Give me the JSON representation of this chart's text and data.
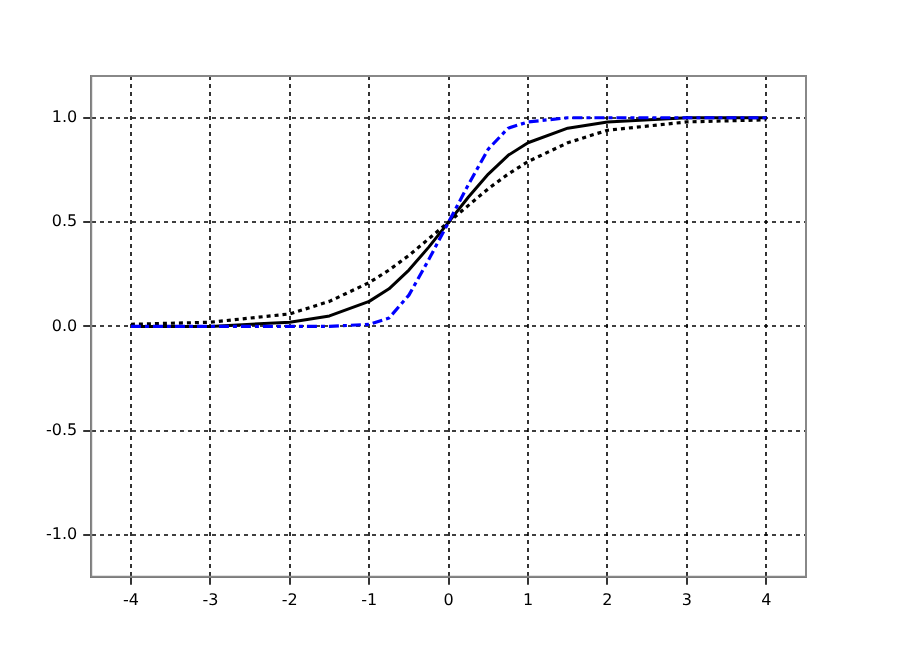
{
  "chart_data": {
    "type": "line",
    "x": [
      -4,
      -3,
      -2,
      -1.5,
      -1,
      -0.75,
      -0.5,
      -0.25,
      0,
      0.25,
      0.5,
      0.75,
      1,
      1.5,
      2,
      3,
      4
    ],
    "series": [
      {
        "color": "#000000",
        "line_style": "solid",
        "values": [
          0,
          0,
          0.02,
          0.05,
          0.12,
          0.18,
          0.27,
          0.38,
          0.5,
          0.62,
          0.73,
          0.82,
          0.88,
          0.95,
          0.98,
          1,
          1
        ]
      },
      {
        "color": "#000000",
        "line_style": "dotted",
        "values": [
          0.01,
          0.02,
          0.06,
          0.12,
          0.21,
          0.27,
          0.34,
          0.42,
          0.5,
          0.58,
          0.66,
          0.73,
          0.79,
          0.88,
          0.94,
          0.98,
          0.99
        ]
      },
      {
        "color": "#0000ff",
        "line_style": "dashed",
        "values": [
          0,
          0,
          0,
          0,
          0.01,
          0.04,
          0.15,
          0.32,
          0.5,
          0.68,
          0.85,
          0.95,
          0.98,
          1,
          1,
          1,
          1
        ]
      }
    ],
    "xlim": [
      -4.5,
      4.5
    ],
    "xticks": [
      -4,
      -3,
      -2,
      -1,
      0,
      1,
      2,
      3,
      4
    ],
    "ylim": [
      -1.2,
      1.2
    ],
    "yticks": [
      {
        "value": -1,
        "label": "-1.0"
      },
      {
        "value": -0.5,
        "label": "-0.5"
      },
      {
        "value": 0,
        "label": "0.0"
      },
      {
        "value": 0.5,
        "label": "0.5"
      },
      {
        "value": 1,
        "label": "1.0"
      }
    ],
    "grid": true,
    "legend": false,
    "marker": "none"
  }
}
